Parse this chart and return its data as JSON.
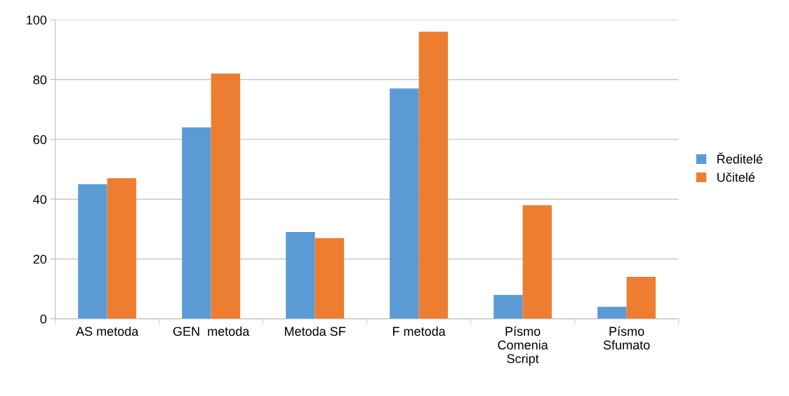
{
  "chart_data": {
    "type": "bar",
    "categories": [
      "AS metoda",
      "GEN  metoda",
      "Metoda SF",
      "F metoda",
      "Písmo\nComenia\nScript",
      "Písmo\nSfumato"
    ],
    "series": [
      {
        "name": "Ředitelé",
        "color": "#5b9bd5",
        "values": [
          45,
          64,
          29,
          77,
          8,
          4
        ]
      },
      {
        "name": "Učitelé",
        "color": "#ed7d31",
        "values": [
          47,
          82,
          27,
          96,
          38,
          14
        ]
      }
    ],
    "ylim": [
      0,
      100
    ],
    "yticks": [
      0,
      20,
      40,
      60,
      80,
      100
    ],
    "grid": "y",
    "legend": "right"
  }
}
